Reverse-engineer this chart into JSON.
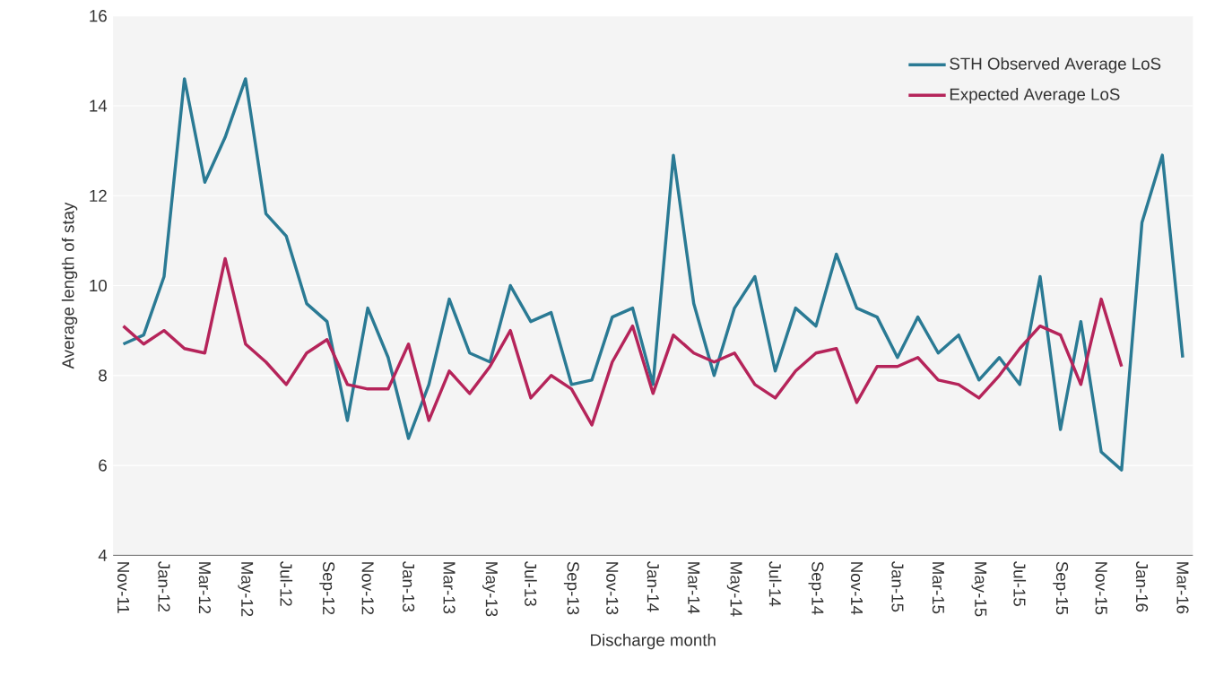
{
  "chart_data": {
    "type": "line",
    "xlabel": "Discharge month",
    "ylabel": "Average length of stay",
    "categories": [
      "Nov-11",
      null,
      "Jan-12",
      null,
      "Mar-12",
      null,
      "May-12",
      null,
      "Jul-12",
      null,
      "Sep-12",
      null,
      "Nov-12",
      null,
      "Jan-13",
      null,
      "Mar-13",
      null,
      "May-13",
      null,
      "Jul-13",
      null,
      "Sep-13",
      null,
      "Nov-13",
      null,
      "Jan-14",
      null,
      "Mar-14",
      null,
      "May-14",
      null,
      "Jul-14",
      null,
      "Sep-14",
      null,
      "Nov-14",
      null,
      "Jan-15",
      null,
      "Mar-15",
      null,
      "May-15",
      null,
      "Jul-15",
      null,
      "Sep-15",
      null,
      "Nov-15",
      null,
      "Jan-16",
      null,
      "Mar-16"
    ],
    "series": [
      {
        "name": "STH Observed Average LoS",
        "color": "#2a7a94",
        "values": [
          8.7,
          8.9,
          10.2,
          14.6,
          12.3,
          13.3,
          14.6,
          11.6,
          11.1,
          9.6,
          9.2,
          7.0,
          9.5,
          8.4,
          6.6,
          7.8,
          9.7,
          8.5,
          8.3,
          10.0,
          9.2,
          9.4,
          7.8,
          7.9,
          9.3,
          9.5,
          7.8,
          12.9,
          9.6,
          8.0,
          9.5,
          10.2,
          8.1,
          9.5,
          9.1,
          10.7,
          9.5,
          9.3,
          8.4,
          9.3,
          8.5,
          8.9,
          7.9,
          8.4,
          7.8,
          10.2,
          6.8,
          9.2,
          6.3,
          5.9,
          11.4,
          12.9,
          8.4
        ]
      },
      {
        "name": "Expected Average LoS",
        "color": "#b5245a",
        "values": [
          9.1,
          8.7,
          9.0,
          8.6,
          8.5,
          10.6,
          8.7,
          8.3,
          7.8,
          8.5,
          8.8,
          7.8,
          7.7,
          7.7,
          8.7,
          7.0,
          8.1,
          7.6,
          8.2,
          9.0,
          7.5,
          8.0,
          7.7,
          6.9,
          8.3,
          9.1,
          7.6,
          8.9,
          8.5,
          8.3,
          8.5,
          7.8,
          7.5,
          8.1,
          8.5,
          8.6,
          7.4,
          8.2,
          8.2,
          8.4,
          7.9,
          7.8,
          7.5,
          8.0,
          8.6,
          9.1,
          8.9,
          7.8,
          9.7,
          8.2,
          null,
          null,
          null
        ]
      }
    ],
    "ylim": [
      4,
      16
    ],
    "yticks": [
      4,
      6,
      8,
      10,
      12,
      14,
      16
    ],
    "grid": "y",
    "legend": "top right",
    "marker": "none",
    "line_style": "solid"
  }
}
